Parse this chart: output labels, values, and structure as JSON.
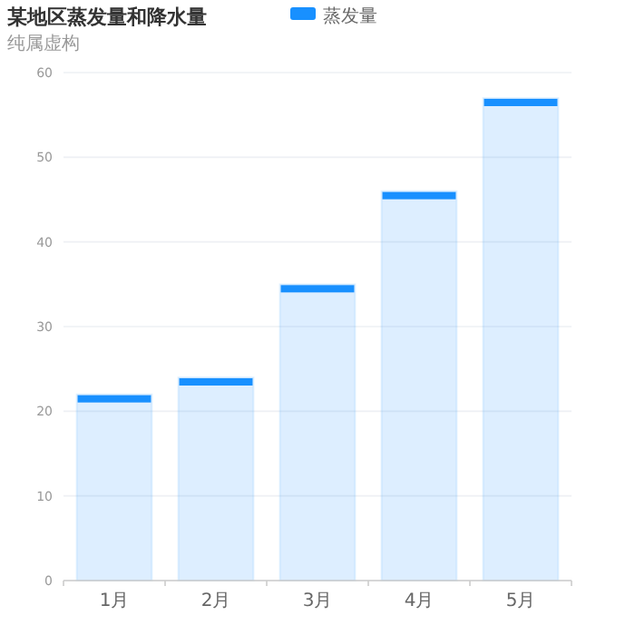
{
  "chart_data": {
    "type": "bar",
    "title": "某地区蒸发量和降水量",
    "subtitle": "纯属虚构",
    "categories": [
      "1月",
      "2月",
      "3月",
      "4月",
      "5月"
    ],
    "series": [
      {
        "name": "蒸发量",
        "color": "#1890ff",
        "values": [
          22,
          24,
          35,
          46,
          57
        ]
      }
    ],
    "ylim": [
      0,
      60
    ],
    "yticks": [
      0,
      10,
      20,
      30,
      40,
      50,
      60
    ],
    "grid": "y",
    "legend": "top"
  }
}
